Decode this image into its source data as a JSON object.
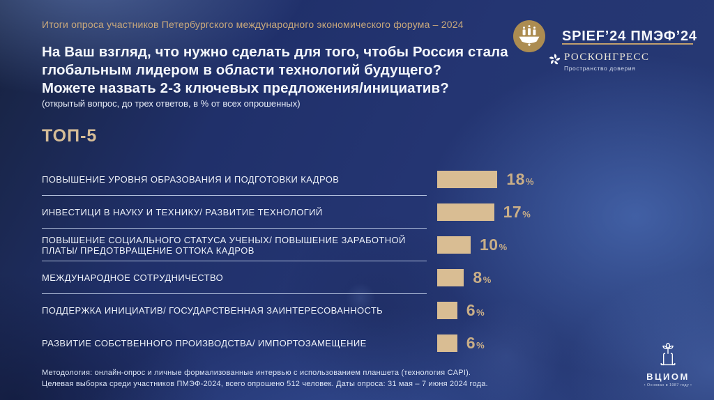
{
  "header": {
    "kicker": "Итоги опроса участников Петербургского международного экономического форума – 2024"
  },
  "brand": {
    "spief_wordmark": "SPIEF’24 ПМЭФ’24",
    "roscongress": "РОСКОНГРЕСС",
    "roscongress_tagline": "Пространство доверия"
  },
  "question": {
    "lines": [
      "На Ваш взгляд, что нужно сделать для того, чтобы Россия стала",
      "глобальным лидером в области технологий будущего?",
      "Можете назвать 2-3 ключевых предложения/инициатив?"
    ],
    "note": "(открытый вопрос, до трех ответов, в % от всех опрошенных)"
  },
  "chart_data": {
    "type": "bar",
    "orientation": "horizontal",
    "title": "ТОП-5",
    "unit": "%",
    "categories": [
      "ПОВЫШЕНИЕ УРОВНЯ ОБРАЗОВАНИЯ И ПОДГОТОВКИ КАДРОВ",
      "ИНВЕСТИЦИ В НАУКУ И ТЕХНИКУ/ РАЗВИТИЕ ТЕХНОЛОГИЙ",
      "ПОВЫШЕНИЕ СОЦИАЛЬНОГО СТАТУСА УЧЕНЫХ/ ПОВЫШЕНИЕ ЗАРАБОТНОЙ\nПЛАТЫ/ ПРЕДОТВРАЩЕНИЕ ОТТОКА КАДРОВ",
      "МЕЖДУНАРОДНОЕ СОТРУДНИЧЕСТВО",
      "ПОДДЕРЖКА ИНИЦИАТИВ/ ГОСУДАРСТВЕННАЯ ЗАИНТЕРЕСОВАННОСТЬ",
      "РАЗВИТИЕ СОБСТВЕННОГО ПРОИЗВОДСТВА/ ИМПОРТОЗАМЕЩЕНИЕ"
    ],
    "values": [
      18,
      17,
      10,
      8,
      6,
      6
    ],
    "xlim": [
      0,
      20
    ],
    "grid": false,
    "legend": false,
    "bar_color": "#d9bd93",
    "separators_after_rows": [
      0,
      1,
      2,
      3
    ]
  },
  "footer": {
    "lines": [
      "Методология: онлайн-опрос и личные формализованные интервью с использованием планшета (технология CAPI).",
      "Целевая выборка среди участников ПМЭФ-2024, всего опрошено 512 человек. Даты опроса: 31 мая – 7 июня 2024 года."
    ],
    "vciom_wordmark": "ВЦИОМ",
    "vciom_tagline": "• Основан в 1987 году •"
  },
  "colors": {
    "accent_gold": "#c8a87c",
    "bar_fill": "#d9bd93",
    "value_text": "#c9ae87",
    "background_navy": "#243572",
    "text_white": "#f4f7fc",
    "emblem_gold": "#ac8c51"
  },
  "icons": {
    "spief": "ship-emblem-icon",
    "roscongress": "pinwheel-icon",
    "vciom": "tree-icon"
  }
}
